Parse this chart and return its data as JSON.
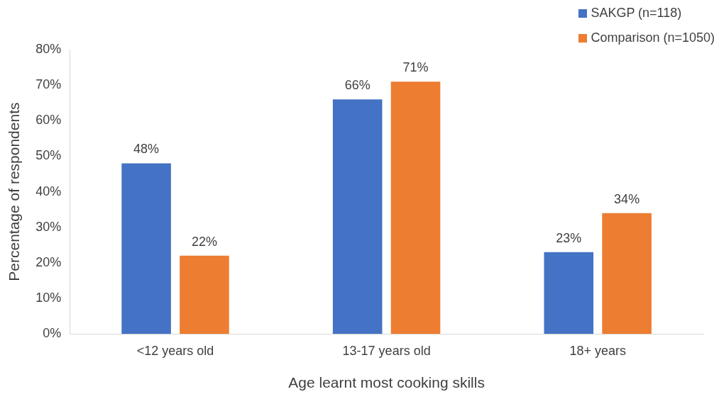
{
  "chart_data": {
    "type": "bar",
    "xlabel": "Age learnt most cooking skills",
    "ylabel": "Percentage of respondents",
    "categories": [
      "<12 years old",
      "13-17 years old",
      "18+ years"
    ],
    "series": [
      {
        "name": "SAKGP (n=118)",
        "color": "#4472c4",
        "values": [
          48,
          66,
          23
        ],
        "value_labels": [
          "48%",
          "66%",
          "23%"
        ]
      },
      {
        "name": "Comparison (n=1050)",
        "color": "#ed7d31",
        "values": [
          22,
          71,
          34
        ],
        "value_labels": [
          "22%",
          "71%",
          "34%"
        ]
      }
    ],
    "ylim": [
      0,
      80
    ],
    "yticks": [
      {
        "value": 0,
        "label": "0%"
      },
      {
        "value": 10,
        "label": "10%"
      },
      {
        "value": 20,
        "label": "20%"
      },
      {
        "value": 30,
        "label": "30%"
      },
      {
        "value": 40,
        "label": "40%"
      },
      {
        "value": 50,
        "label": "50%"
      },
      {
        "value": 60,
        "label": "60%"
      },
      {
        "value": 70,
        "label": "70%"
      },
      {
        "value": 80,
        "label": "80%"
      }
    ],
    "grid": false,
    "legend": "top right"
  }
}
